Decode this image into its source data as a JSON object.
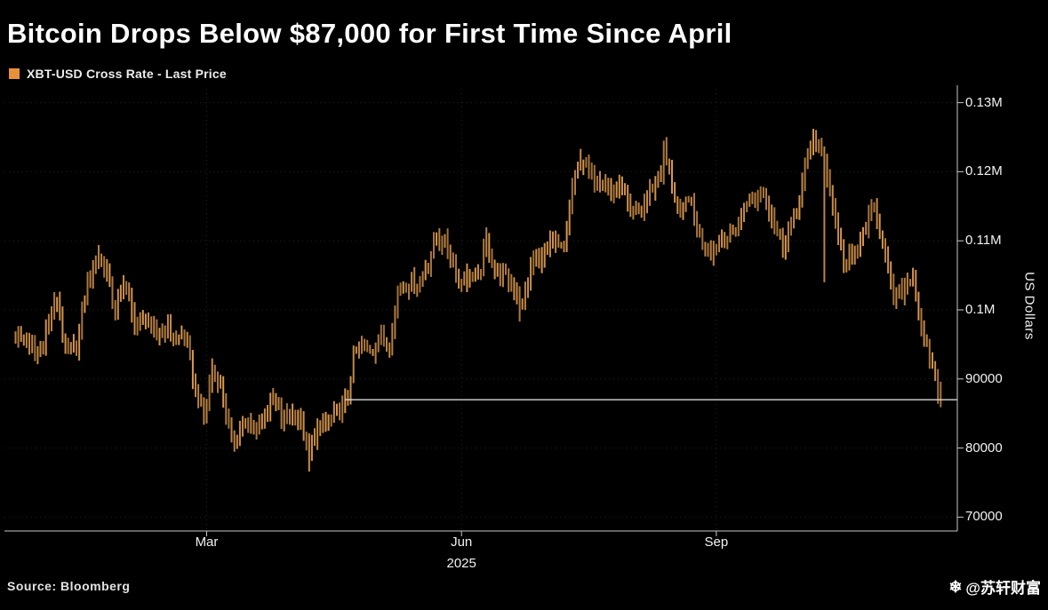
{
  "header": {
    "title": "Bitcoin Drops Below $87,000 for First Time Since April"
  },
  "legend": {
    "label": "XBT-USD Cross Rate - Last Price",
    "swatch_color": "#E8913A"
  },
  "footer": {
    "source": "Source: Bloomberg",
    "watermark_icon": "❄",
    "watermark_text": "@苏轩财富"
  },
  "chart_data": {
    "type": "ohlc-bar",
    "title": "Bitcoin Drops Below $87,000 for First Time Since April",
    "series_name": "XBT-USD Cross Rate - Last Price",
    "ylabel": "US Dollars",
    "xlabel": "2025",
    "grid": true,
    "legend_position": "top-left",
    "ylim": [
      68000,
      132000
    ],
    "xlim": [
      "2024-12-18",
      "2025-11-27"
    ],
    "data_range": [
      "2024-12-22",
      "2025-11-21"
    ],
    "yticks": [
      {
        "value": 130000,
        "label": "0.13M"
      },
      {
        "value": 120000,
        "label": "0.12M"
      },
      {
        "value": 110000,
        "label": "0.11M"
      },
      {
        "value": 100000,
        "label": "0.1M"
      },
      {
        "value": 90000,
        "label": "90000"
      },
      {
        "value": 80000,
        "label": "80000"
      },
      {
        "value": 70000,
        "label": "70000"
      }
    ],
    "xticks": [
      {
        "date": "2025-03-01",
        "label": "Mar"
      },
      {
        "date": "2025-06-01",
        "label": "Jun"
      },
      {
        "date": "2025-09-01",
        "label": "Sep"
      }
    ],
    "year": {
      "label": "2025",
      "anchor": "2025-06-01"
    },
    "ref_line": {
      "value": 87000,
      "from": "2025-04-20",
      "color": "#d9d9d9"
    },
    "last_price": 86800,
    "colors": {
      "bar": "#DD9A4F",
      "axis": "#c8c8c8",
      "grid": "#232323"
    },
    "keyframes": [
      [
        "2024-12-22",
        96500
      ],
      [
        "2024-12-26",
        95500
      ],
      [
        "2024-12-30",
        93500
      ],
      [
        "2025-01-03",
        98000
      ],
      [
        "2025-01-06",
        101800
      ],
      [
        "2025-01-09",
        93800
      ],
      [
        "2025-01-13",
        94600
      ],
      [
        "2025-01-17",
        104200
      ],
      [
        "2025-01-21",
        107800
      ],
      [
        "2025-01-24",
        105500
      ],
      [
        "2025-01-27",
        99800
      ],
      [
        "2025-01-30",
        104200
      ],
      [
        "2025-02-03",
        97800
      ],
      [
        "2025-02-07",
        98900
      ],
      [
        "2025-02-11",
        96100
      ],
      [
        "2025-02-14",
        97600
      ],
      [
        "2025-02-18",
        95600
      ],
      [
        "2025-02-21",
        96400
      ],
      [
        "2025-02-25",
        88600
      ],
      [
        "2025-02-28",
        84300
      ],
      [
        "2025-03-03",
        91500
      ],
      [
        "2025-03-06",
        89200
      ],
      [
        "2025-03-10",
        80600
      ],
      [
        "2025-03-14",
        83800
      ],
      [
        "2025-03-18",
        82400
      ],
      [
        "2025-03-21",
        84100
      ],
      [
        "2025-03-25",
        87400
      ],
      [
        "2025-03-28",
        84200
      ],
      [
        "2025-04-02",
        85200
      ],
      [
        "2025-04-04",
        83600
      ],
      [
        "2025-04-07",
        78600
      ],
      [
        "2025-04-09",
        82100
      ],
      [
        "2025-04-13",
        83700
      ],
      [
        "2025-04-17",
        84600
      ],
      [
        "2025-04-21",
        87300
      ],
      [
        "2025-04-23",
        93400
      ],
      [
        "2025-04-26",
        94600
      ],
      [
        "2025-04-30",
        94300
      ],
      [
        "2025-05-03",
        96400
      ],
      [
        "2025-05-06",
        94700
      ],
      [
        "2025-05-09",
        102900
      ],
      [
        "2025-05-13",
        104100
      ],
      [
        "2025-05-16",
        103400
      ],
      [
        "2025-05-20",
        106800
      ],
      [
        "2025-05-23",
        110900
      ],
      [
        "2025-05-27",
        109200
      ],
      [
        "2025-05-31",
        103900
      ],
      [
        "2025-06-04",
        105300
      ],
      [
        "2025-06-07",
        104200
      ],
      [
        "2025-06-10",
        110000
      ],
      [
        "2025-06-13",
        105900
      ],
      [
        "2025-06-17",
        104600
      ],
      [
        "2025-06-20",
        103400
      ],
      [
        "2025-06-23",
        100900
      ],
      [
        "2025-06-27",
        107200
      ],
      [
        "2025-06-30",
        107400
      ],
      [
        "2025-07-03",
        109600
      ],
      [
        "2025-07-08",
        108600
      ],
      [
        "2025-07-11",
        117600
      ],
      [
        "2025-07-14",
        122100
      ],
      [
        "2025-07-18",
        119400
      ],
      [
        "2025-07-22",
        119100
      ],
      [
        "2025-07-25",
        116600
      ],
      [
        "2025-07-29",
        118100
      ],
      [
        "2025-08-01",
        113600
      ],
      [
        "2025-08-05",
        114600
      ],
      [
        "2025-08-08",
        117200
      ],
      [
        "2025-08-12",
        119900
      ],
      [
        "2025-08-13",
        123200
      ],
      [
        "2025-08-16",
        117900
      ],
      [
        "2025-08-19",
        113100
      ],
      [
        "2025-08-22",
        116600
      ],
      [
        "2025-08-26",
        110600
      ],
      [
        "2025-08-30",
        108400
      ],
      [
        "2025-09-03",
        110600
      ],
      [
        "2025-09-06",
        110400
      ],
      [
        "2025-09-09",
        112600
      ],
      [
        "2025-09-12",
        115900
      ],
      [
        "2025-09-16",
        116400
      ],
      [
        "2025-09-18",
        117400
      ],
      [
        "2025-09-22",
        112400
      ],
      [
        "2025-09-25",
        109300
      ],
      [
        "2025-09-30",
        114100
      ],
      [
        "2025-10-03",
        120400
      ],
      [
        "2025-10-06",
        125400
      ],
      [
        "2025-10-08",
        123400
      ],
      [
        "2025-10-10",
        121400
      ],
      [
        "2025-10-14",
        113200
      ],
      [
        "2025-10-17",
        106400
      ],
      [
        "2025-10-21",
        108100
      ],
      [
        "2025-10-24",
        111200
      ],
      [
        "2025-10-28",
        114600
      ],
      [
        "2025-10-31",
        110100
      ],
      [
        "2025-11-04",
        101600
      ],
      [
        "2025-11-07",
        102700
      ],
      [
        "2025-11-11",
        105200
      ],
      [
        "2025-11-13",
        99400
      ],
      [
        "2025-11-14",
        96600
      ],
      [
        "2025-11-17",
        93400
      ],
      [
        "2025-11-19",
        90300
      ],
      [
        "2025-11-21",
        86800
      ]
    ],
    "events": [
      {
        "date": "2025-01-21",
        "hi": 109400
      },
      {
        "date": "2025-04-07",
        "lo": 76600
      },
      {
        "date": "2025-06-22",
        "lo": 98300
      },
      {
        "date": "2025-07-14",
        "hi": 123300
      },
      {
        "date": "2025-08-13",
        "hi": 124500
      },
      {
        "date": "2025-10-06",
        "hi": 126200
      },
      {
        "date": "2025-10-10",
        "lo": 104000
      },
      {
        "date": "2025-11-21",
        "lo": 85900,
        "hi": 89600
      }
    ]
  }
}
